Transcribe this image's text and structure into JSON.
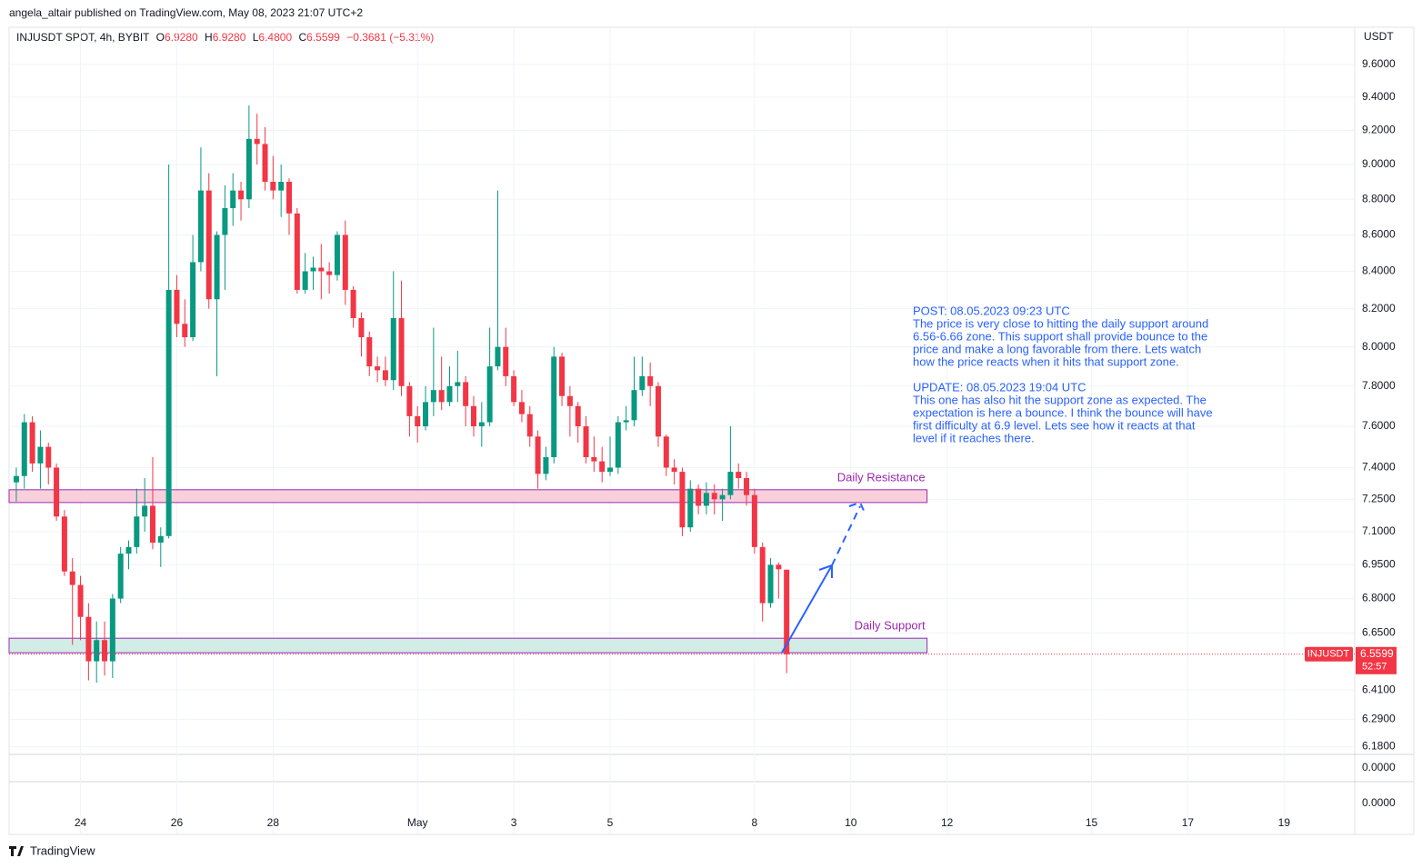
{
  "header": {
    "published": "angela_altair published on TradingView.com, May 08, 2023 21:07 UTC+2",
    "brand": "TradingView"
  },
  "chart_data": {
    "type": "candlestick",
    "symbol": "INJUSDT SPOT, 4h, BYBIT",
    "legend": {
      "o_label": "O",
      "o": "6.9280",
      "h_label": "H",
      "h": "6.9280",
      "l_label": "L",
      "l": "6.4800",
      "c_label": "C",
      "c": "6.5599",
      "change": "−0.3681 (−5.31%)"
    },
    "currency": "USDT",
    "log_scale": true,
    "up_color": "#089981",
    "down_color": "#f23645",
    "open": [
      7.33,
      7.36,
      7.62,
      7.42,
      7.5,
      7.4,
      7.17,
      6.92,
      6.86,
      6.72,
      6.53,
      6.62,
      6.53,
      6.8,
      7.0,
      7.03,
      7.17,
      7.22,
      7.05,
      7.08,
      8.3,
      8.12,
      8.05,
      8.45,
      8.85,
      8.25,
      8.6,
      8.75,
      8.85,
      8.8,
      9.15,
      9.12,
      8.9,
      8.85,
      8.9,
      8.72,
      8.3,
      8.4,
      8.42,
      8.4,
      8.38,
      8.6,
      8.3,
      8.15,
      8.05,
      7.9,
      7.88,
      7.83,
      8.15,
      7.8,
      7.65,
      7.6,
      7.72,
      7.78,
      7.72,
      7.8,
      7.82,
      7.7,
      7.6,
      7.62,
      7.9,
      8.0,
      7.85,
      7.72,
      7.66,
      7.55,
      7.37,
      7.45,
      7.95,
      7.75,
      7.7,
      7.6,
      7.45,
      7.43,
      7.38,
      7.4,
      7.62,
      7.63,
      7.78,
      7.85,
      7.8,
      7.55,
      7.4,
      7.38,
      7.12,
      7.3,
      7.22,
      7.28,
      7.25,
      7.27,
      7.38,
      7.35,
      7.27,
      7.03,
      6.78,
      6.95,
      6.928
    ],
    "high": [
      7.4,
      7.66,
      7.65,
      7.58,
      7.52,
      7.42,
      7.2,
      6.98,
      6.9,
      6.78,
      6.7,
      6.7,
      6.82,
      7.03,
      7.06,
      7.3,
      7.35,
      7.45,
      7.12,
      9.0,
      8.38,
      8.25,
      8.6,
      9.1,
      8.95,
      8.62,
      8.88,
      8.95,
      8.9,
      9.35,
      9.3,
      9.22,
      9.05,
      9.0,
      8.92,
      8.75,
      8.5,
      8.48,
      8.55,
      8.45,
      8.62,
      8.68,
      8.32,
      8.18,
      8.08,
      7.95,
      7.95,
      8.4,
      8.35,
      7.82,
      7.7,
      7.8,
      8.1,
      7.95,
      7.9,
      7.98,
      7.85,
      7.75,
      7.72,
      8.1,
      8.85,
      8.1,
      7.88,
      7.78,
      7.7,
      7.58,
      7.5,
      8.0,
      7.97,
      7.8,
      7.72,
      7.65,
      7.55,
      7.5,
      7.55,
      7.65,
      7.7,
      7.95,
      7.95,
      7.92,
      7.82,
      7.56,
      7.44,
      7.4,
      7.34,
      7.32,
      7.33,
      7.32,
      7.3,
      7.6,
      7.42,
      7.38,
      7.3,
      7.05,
      6.98,
      6.96,
      6.928
    ],
    "low": [
      7.24,
      7.3,
      7.38,
      7.3,
      7.32,
      7.15,
      6.9,
      6.6,
      6.62,
      6.45,
      6.44,
      6.47,
      6.46,
      6.78,
      6.93,
      7.0,
      7.1,
      7.02,
      6.94,
      7.07,
      8.05,
      8.0,
      8.03,
      8.4,
      8.2,
      7.85,
      8.3,
      8.65,
      8.68,
      8.75,
      9.0,
      8.85,
      8.8,
      8.7,
      8.6,
      8.28,
      8.28,
      8.3,
      8.25,
      8.28,
      8.35,
      8.22,
      8.1,
      7.95,
      7.85,
      7.82,
      7.8,
      7.78,
      7.75,
      7.55,
      7.52,
      7.58,
      7.65,
      7.68,
      7.7,
      7.72,
      7.6,
      7.55,
      7.5,
      7.6,
      7.88,
      7.8,
      7.7,
      7.62,
      7.5,
      7.3,
      7.34,
      7.42,
      7.7,
      7.55,
      7.52,
      7.42,
      7.38,
      7.33,
      7.36,
      7.37,
      7.58,
      7.6,
      7.75,
      7.7,
      7.5,
      7.36,
      7.32,
      7.08,
      7.1,
      7.18,
      7.18,
      7.18,
      7.15,
      7.25,
      7.3,
      7.22,
      7.0,
      6.7,
      6.76,
      6.8,
      6.48
    ],
    "close": [
      7.36,
      7.62,
      7.42,
      7.5,
      7.4,
      7.17,
      6.92,
      6.86,
      6.72,
      6.53,
      6.62,
      6.53,
      6.8,
      7.0,
      7.03,
      7.17,
      7.22,
      7.05,
      7.08,
      8.3,
      8.12,
      8.05,
      8.45,
      8.85,
      8.25,
      8.6,
      8.75,
      8.85,
      8.8,
      9.15,
      9.12,
      8.9,
      8.85,
      8.9,
      8.72,
      8.3,
      8.4,
      8.42,
      8.4,
      8.38,
      8.6,
      8.3,
      8.15,
      8.05,
      7.9,
      7.88,
      7.83,
      8.15,
      7.8,
      7.65,
      7.6,
      7.72,
      7.78,
      7.72,
      7.8,
      7.82,
      7.7,
      7.6,
      7.62,
      7.9,
      8.0,
      7.85,
      7.72,
      7.66,
      7.55,
      7.37,
      7.45,
      7.95,
      7.75,
      7.7,
      7.6,
      7.45,
      7.43,
      7.38,
      7.4,
      7.62,
      7.63,
      7.78,
      7.85,
      7.8,
      7.55,
      7.4,
      7.38,
      7.12,
      7.3,
      7.22,
      7.28,
      7.25,
      7.27,
      7.38,
      7.35,
      7.27,
      7.03,
      6.78,
      6.95,
      6.93,
      6.5599
    ],
    "xlim": [
      -0.9,
      166.8
    ],
    "xticks": [
      {
        "value": 8,
        "label": "24"
      },
      {
        "value": 20,
        "label": "26"
      },
      {
        "value": 32,
        "label": "28"
      },
      {
        "value": 50,
        "label": "May"
      },
      {
        "value": 62,
        "label": "3"
      },
      {
        "value": 74,
        "label": "5"
      },
      {
        "value": 92,
        "label": "8"
      },
      {
        "value": 104,
        "label": "10"
      },
      {
        "value": 116,
        "label": "12"
      },
      {
        "value": 134,
        "label": "15"
      },
      {
        "value": 146,
        "label": "17"
      },
      {
        "value": 158,
        "label": "19"
      }
    ],
    "ylim": [
      6.149,
      9.834
    ],
    "yticks": [
      {
        "value": 9.6,
        "label": "9.6000"
      },
      {
        "value": 9.4,
        "label": "9.4000"
      },
      {
        "value": 9.2,
        "label": "9.2000"
      },
      {
        "value": 9.0,
        "label": "9.0000"
      },
      {
        "value": 8.8,
        "label": "8.8000"
      },
      {
        "value": 8.6,
        "label": "8.6000"
      },
      {
        "value": 8.4,
        "label": "8.4000"
      },
      {
        "value": 8.2,
        "label": "8.2000"
      },
      {
        "value": 8.0,
        "label": "8.0000"
      },
      {
        "value": 7.8,
        "label": "7.8000"
      },
      {
        "value": 7.6,
        "label": "7.6000"
      },
      {
        "value": 7.4,
        "label": "7.4000"
      },
      {
        "value": 7.25,
        "label": "7.2500"
      },
      {
        "value": 7.1,
        "label": "7.1000"
      },
      {
        "value": 6.95,
        "label": "6.9500"
      },
      {
        "value": 6.8,
        "label": "6.8000"
      },
      {
        "value": 6.65,
        "label": "6.6500"
      },
      {
        "value": 6.41,
        "label": "6.4100"
      },
      {
        "value": 6.29,
        "label": "6.2900"
      },
      {
        "value": 6.18,
        "label": "6.1800"
      }
    ],
    "grid": true,
    "indicator_panes": [
      {
        "label": "0.0000"
      },
      {
        "label": "0.0000"
      }
    ],
    "zones": [
      {
        "label": "Daily Resistance",
        "low": 7.235,
        "high": 7.295,
        "end": 113.5,
        "color": "#f8d0dc",
        "border": "#9c27b0"
      },
      {
        "label": "Daily Support",
        "low": 6.566,
        "high": 6.628,
        "end": 113.5,
        "color": "#d2ece6",
        "border": "#9c27b0"
      }
    ],
    "last_price": {
      "symbol": "INJUSDT",
      "value": 6.5599,
      "label": "6.5599",
      "countdown": "52:57"
    },
    "note": [
      [
        "POST: 08.05.2023 09:23 UTC",
        "The price is very close to hitting the daily support around",
        "6.56-6.66 zone. This support shall provide bounce to the",
        "price and make a long favorable from there. Lets watch",
        "how the price reacts when it hits that support zone."
      ],
      [
        "UPDATE: 08.05.2023 19:04 UTC",
        "This one has also hit the support zone as expected. The",
        "expectation is here a bounce. I think the bounce will have",
        "first difficulty at 6.9 level. Lets see how it reacts at that",
        "level if it reaches there."
      ]
    ]
  }
}
